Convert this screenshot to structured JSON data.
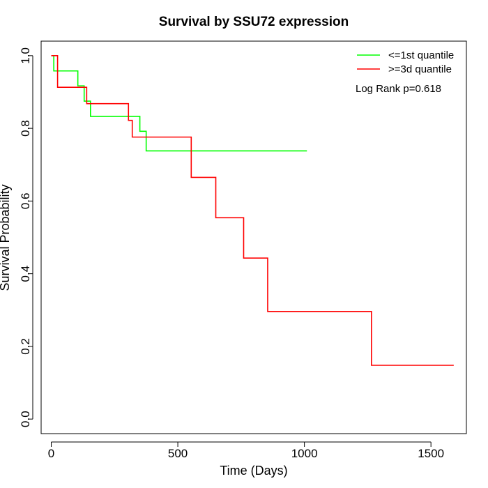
{
  "chart_data": {
    "type": "line",
    "title": "Survival by SSU72 expression",
    "xlabel": "Time (Days)",
    "ylabel": "Survival Probability",
    "xlim": [
      -40,
      1640
    ],
    "ylim": [
      -0.04,
      1.04
    ],
    "x_ticks": [
      0,
      500,
      1000,
      1500
    ],
    "y_ticks": [
      0.0,
      0.2,
      0.4,
      0.6,
      0.8,
      1.0
    ],
    "x_tick_labels": [
      "0",
      "500",
      "1000",
      "1500"
    ],
    "y_tick_labels": [
      "0.0",
      "0.2",
      "0.4",
      "0.6",
      "0.8",
      "1.0"
    ],
    "grid": false,
    "legend_position": "top-right",
    "series": [
      {
        "name": "<=1st quantile",
        "color": "#00ff00",
        "steps": [
          [
            0,
            1.0
          ],
          [
            10,
            0.958
          ],
          [
            105,
            0.917
          ],
          [
            130,
            0.875
          ],
          [
            155,
            0.833
          ],
          [
            350,
            0.792
          ],
          [
            375,
            0.738
          ],
          [
            1010,
            0.738
          ]
        ]
      },
      {
        "name": ">=3d quantile",
        "color": "#ff0000",
        "steps": [
          [
            0,
            1.0
          ],
          [
            25,
            0.913
          ],
          [
            140,
            0.868
          ],
          [
            305,
            0.822
          ],
          [
            320,
            0.776
          ],
          [
            553,
            0.665
          ],
          [
            650,
            0.554
          ],
          [
            760,
            0.443
          ],
          [
            855,
            0.296
          ],
          [
            1265,
            0.148
          ],
          [
            1590,
            0.148
          ]
        ]
      }
    ],
    "annotations": [
      "Log Rank p=0.618"
    ]
  }
}
